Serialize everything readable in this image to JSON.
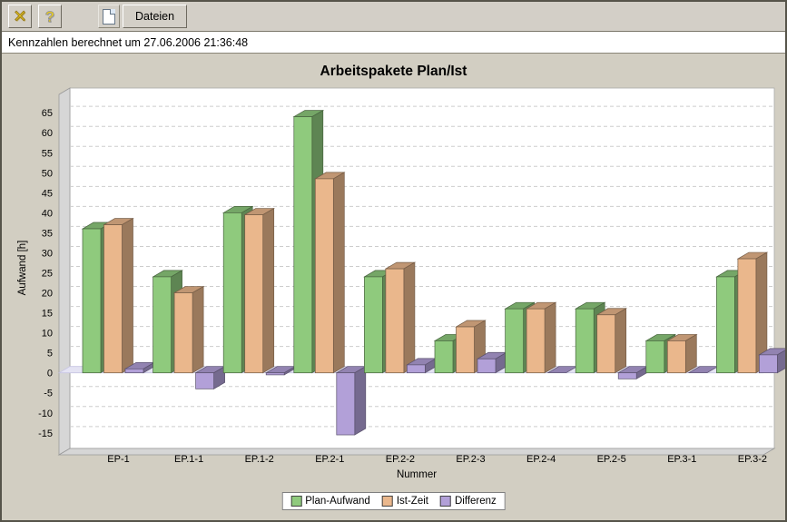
{
  "toolbar": {
    "close_icon": "✕",
    "help_icon": "?",
    "dateien_label": "Dateien"
  },
  "status": {
    "text": "Kennzahlen berechnet um 27.06.2006 21:36:48"
  },
  "chart_data": {
    "type": "bar",
    "effect": "3d",
    "title": "Arbeitspakete Plan/Ist",
    "xlabel": "Nummer",
    "ylabel": "Aufwand [h]",
    "ylim": [
      -18,
      71
    ],
    "grid": "dashed-horizontal",
    "legend_position": "bottom",
    "categories": [
      "EP-1",
      "EP.1-1",
      "EP.1-2",
      "EP.2-1",
      "EP.2-2",
      "EP.2-3",
      "EP.2-4",
      "EP.2-5",
      "EP.3-1",
      "EP.3-2"
    ],
    "yticks": [
      -15,
      -10,
      -5,
      0,
      5,
      10,
      15,
      20,
      25,
      30,
      35,
      40,
      45,
      50,
      55,
      60,
      65
    ],
    "series": [
      {
        "name": "Plan-Aufwand",
        "color": "#8fca7d",
        "values": [
          36,
          24,
          40,
          64,
          24,
          8,
          16,
          16,
          8,
          24
        ]
      },
      {
        "name": "Ist-Zeit",
        "color": "#eab78c",
        "values": [
          37,
          20,
          39.5,
          48.5,
          26,
          11.5,
          16,
          14.5,
          8,
          28.5
        ]
      },
      {
        "name": "Differenz",
        "color": "#b2a0d8",
        "values": [
          1,
          -4,
          -0.5,
          -15.5,
          2,
          3.5,
          0,
          -1.5,
          0,
          4.5
        ]
      }
    ]
  }
}
